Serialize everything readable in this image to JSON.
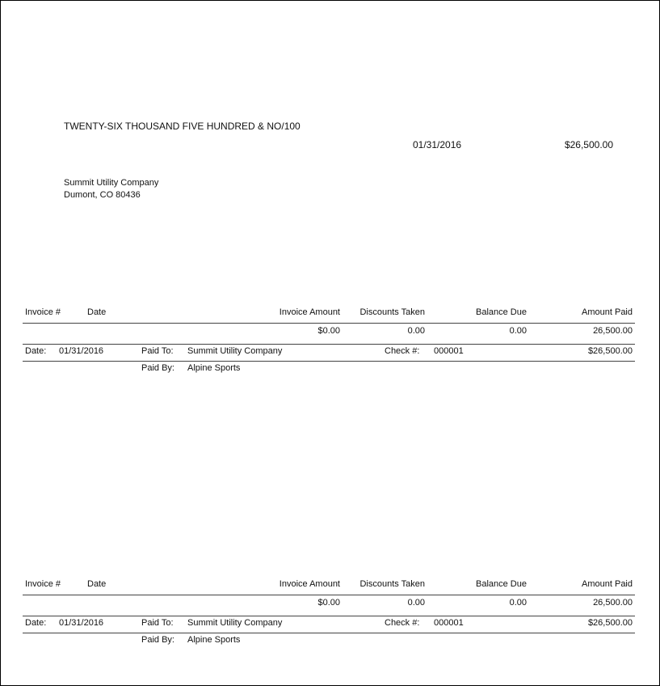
{
  "check": {
    "amount_words": "TWENTY-SIX THOUSAND FIVE HUNDRED & NO/100",
    "date": "01/31/2016",
    "amount": "$26,500.00",
    "payee_name": "Summit Utility Company",
    "payee_address": "Dumont, CO  80436"
  },
  "stub": {
    "headers": {
      "invoice_no": "Invoice #",
      "date": "Date",
      "invoice_amount": "Invoice Amount",
      "discounts_taken": "Discounts Taken",
      "balance_due": "Balance Due",
      "amount_paid": "Amount Paid"
    },
    "row": {
      "invoice_amount": "$0.00",
      "discounts_taken": "0.00",
      "balance_due": "0.00",
      "amount_paid": "26,500.00"
    },
    "footer": {
      "date_label": "Date:",
      "date": "01/31/2016",
      "paid_to_label": "Paid To:",
      "paid_to": "Summit Utility Company",
      "check_no_label": "Check #:",
      "check_no": "000001",
      "total": "$26,500.00",
      "paid_by_label": "Paid By:",
      "paid_by": "Alpine Sports"
    }
  }
}
